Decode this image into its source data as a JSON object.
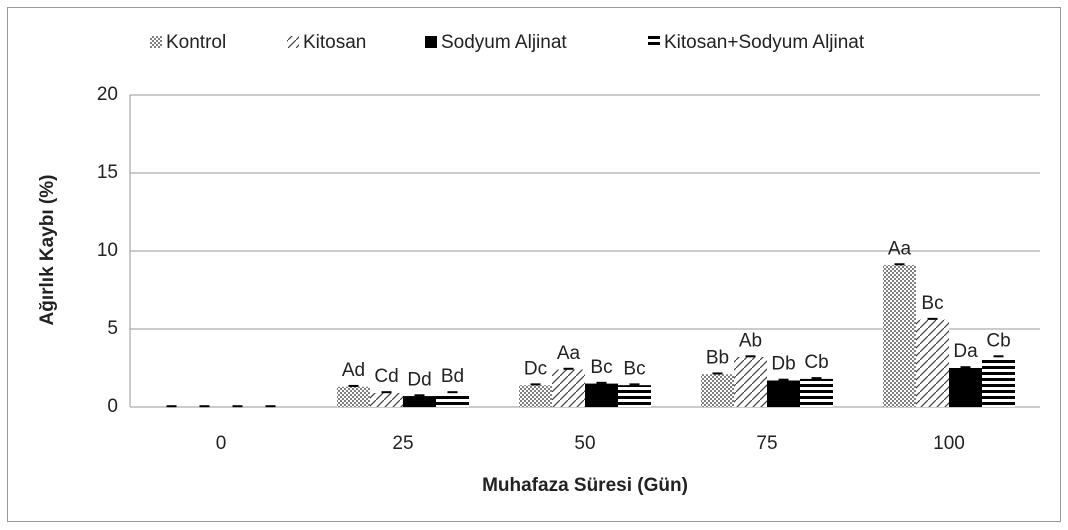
{
  "chart_data": {
    "type": "bar",
    "xlabel": "Muhafaza Süresi (Gün)",
    "ylabel": "Ağırlık Kaybı (%)",
    "categories": [
      "0",
      "25",
      "50",
      "75",
      "100"
    ],
    "series": [
      {
        "name": "Kontrol",
        "color": "#808080",
        "pattern": "checker",
        "values": [
          0,
          1.3,
          1.4,
          2.1,
          9.1
        ],
        "errors": [
          0.05,
          0.05,
          0.05,
          0.05,
          0.05
        ],
        "labels": [
          null,
          "Ad",
          "Dc",
          "Bb",
          "Aa"
        ]
      },
      {
        "name": "Kitosan",
        "color": "#404040",
        "pattern": "diagonal",
        "values": [
          0,
          0.9,
          2.4,
          3.2,
          5.6
        ],
        "errors": [
          0.05,
          0.05,
          0.05,
          0.05,
          0.05
        ],
        "labels": [
          null,
          "Cd",
          "Aa",
          "Ab",
          "Bc"
        ]
      },
      {
        "name": "Sodyum Aljinat",
        "color": "#000000",
        "pattern": "solid",
        "values": [
          0,
          0.7,
          1.5,
          1.7,
          2.5
        ],
        "errors": [
          0.05,
          0.05,
          0.05,
          0.05,
          0.05
        ],
        "labels": [
          null,
          "Dd",
          "Bc",
          "Db",
          "Da"
        ]
      },
      {
        "name": "Kitosan+Sodyum Aljinat",
        "color": "#000000",
        "pattern": "horizontal",
        "values": [
          0,
          0.9,
          1.4,
          1.8,
          3.2
        ],
        "errors": [
          0.05,
          0.05,
          0.05,
          0.05,
          0.05
        ],
        "labels": [
          null,
          "Bd",
          "Bc",
          "Cb",
          "Cb"
        ]
      }
    ],
    "ylim": [
      0,
      20
    ],
    "yticks": [
      0,
      5,
      10,
      15,
      20
    ],
    "grid": true,
    "legend": "top"
  }
}
